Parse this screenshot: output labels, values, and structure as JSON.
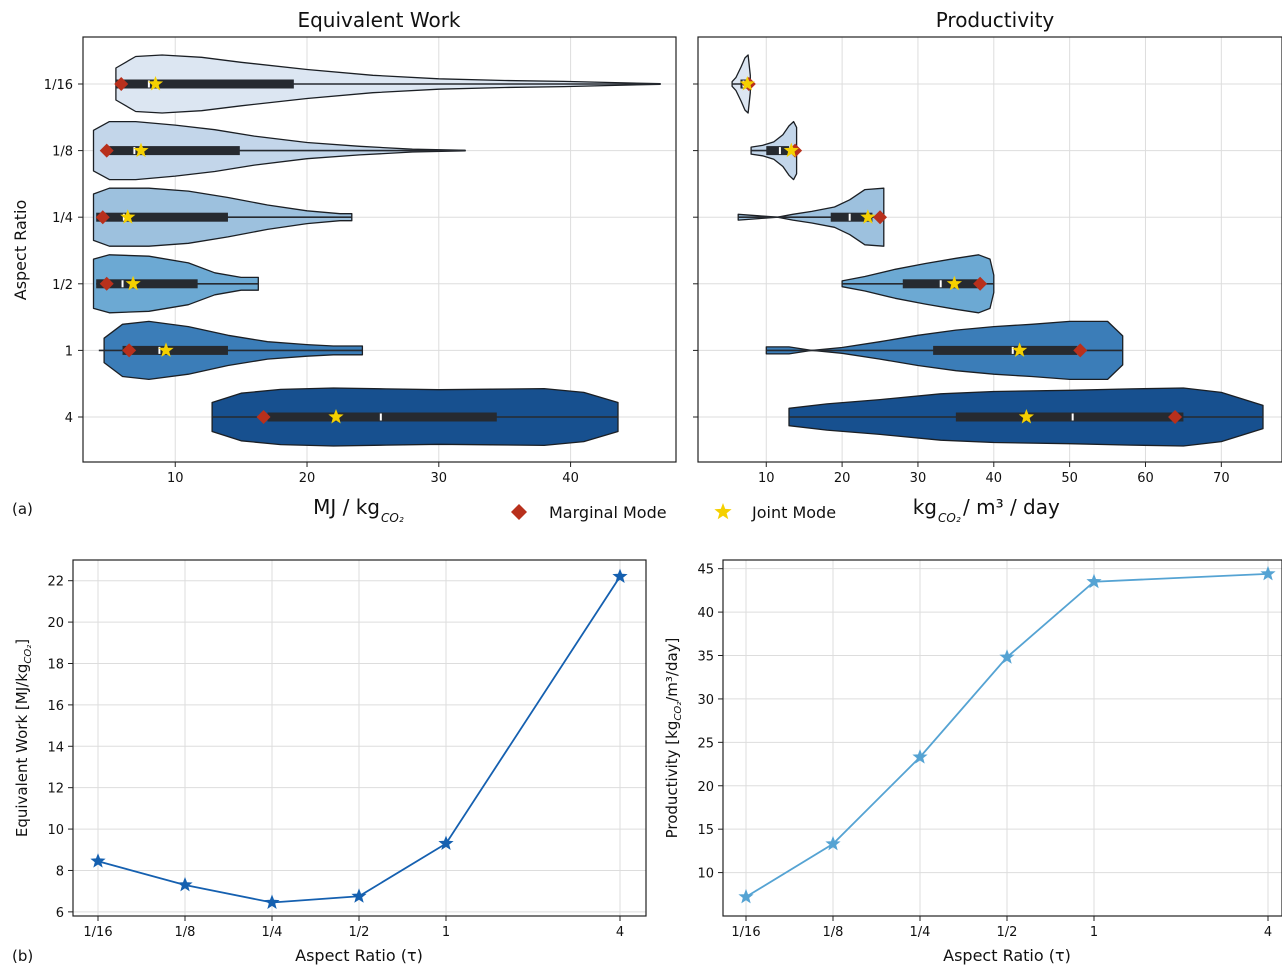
{
  "panel_labels": {
    "a": "(a)",
    "b": "(b)"
  },
  "legend": {
    "marginal": {
      "label": "Marginal Mode",
      "color": "#b8301c"
    },
    "joint": {
      "label": "Joint Mode",
      "color": "#f5d000"
    }
  },
  "colors": {
    "violins": [
      "#dce6f2",
      "#c3d6ea",
      "#9dc1de",
      "#6ca9d3",
      "#3b7db8",
      "#17508f"
    ],
    "box": "#262a30",
    "line_left": "#1560b0",
    "line_right": "#55a3d3",
    "grid": "#dddddd"
  },
  "chart_data": [
    {
      "type": "violin",
      "title": "Equivalent Work",
      "xlabel": "MJ / kg",
      "xlabel_sub": "CO₂",
      "ylabel": "Aspect Ratio",
      "categories": [
        "1/16",
        "1/8",
        "1/4",
        "1/2",
        "1",
        "4"
      ],
      "xlim": [
        3,
        48
      ],
      "xticks": [
        10,
        20,
        30,
        40
      ],
      "grid": true,
      "violins": [
        {
          "min": 5.5,
          "max": 46.8,
          "q1": 5.5,
          "median": 8.0,
          "q3": 19.0,
          "marginal_mode": 5.9,
          "joint_mode": 8.5,
          "profile": [
            [
              5.5,
              0.55
            ],
            [
              7,
              0.95
            ],
            [
              9,
              1.0
            ],
            [
              12,
              0.92
            ],
            [
              15,
              0.75
            ],
            [
              20,
              0.5
            ],
            [
              25,
              0.3
            ],
            [
              30,
              0.18
            ],
            [
              35,
              0.12
            ],
            [
              39.5,
              0.09
            ],
            [
              43,
              0.05
            ],
            [
              46.8,
              0.01
            ]
          ]
        },
        {
          "min": 5.0,
          "max": 32.0,
          "q1": 5.0,
          "median": 6.9,
          "q3": 14.9,
          "marginal_mode": 4.8,
          "joint_mode": 7.4,
          "profile": [
            [
              3.8,
              0.7
            ],
            [
              5,
              1.0
            ],
            [
              7,
              1.0
            ],
            [
              10,
              0.88
            ],
            [
              13,
              0.72
            ],
            [
              16,
              0.5
            ],
            [
              20,
              0.28
            ],
            [
              24,
              0.15
            ],
            [
              28,
              0.05
            ],
            [
              32,
              0.01
            ]
          ]
        },
        {
          "min": 4.0,
          "max": 23.4,
          "q1": 4.0,
          "median": 6.1,
          "q3": 14.0,
          "marginal_mode": 4.5,
          "joint_mode": 6.4,
          "profile": [
            [
              3.8,
              0.8
            ],
            [
              5,
              1.0
            ],
            [
              8,
              1.0
            ],
            [
              11,
              0.9
            ],
            [
              14,
              0.68
            ],
            [
              17,
              0.42
            ],
            [
              20,
              0.22
            ],
            [
              22.5,
              0.12
            ],
            [
              23.4,
              0.12
            ]
          ]
        },
        {
          "min": 4.0,
          "max": 16.3,
          "q1": 4.0,
          "median": 6.0,
          "q3": 11.7,
          "marginal_mode": 4.8,
          "joint_mode": 6.8,
          "profile": [
            [
              3.8,
              0.85
            ],
            [
              5,
              1.0
            ],
            [
              8,
              0.95
            ],
            [
              11,
              0.72
            ],
            [
              13,
              0.38
            ],
            [
              15,
              0.22
            ],
            [
              16.3,
              0.22
            ]
          ]
        },
        {
          "min": 4.2,
          "max": 24.2,
          "q1": 6.0,
          "median": 8.8,
          "q3": 14.0,
          "marginal_mode": 6.5,
          "joint_mode": 9.3,
          "profile": [
            [
              4.6,
              0.42
            ],
            [
              6,
              0.9
            ],
            [
              8,
              1.0
            ],
            [
              11,
              0.82
            ],
            [
              14,
              0.52
            ],
            [
              17,
              0.3
            ],
            [
              20,
              0.2
            ],
            [
              22,
              0.15
            ],
            [
              24.2,
              0.15
            ]
          ]
        },
        {
          "min": 12.8,
          "max": 43.6,
          "q1": 17.0,
          "median": 25.6,
          "q3": 34.4,
          "marginal_mode": 16.7,
          "joint_mode": 22.2,
          "profile": [
            [
              12.8,
              0.5
            ],
            [
              15,
              0.82
            ],
            [
              18,
              0.95
            ],
            [
              22,
              1.0
            ],
            [
              26,
              0.97
            ],
            [
              30,
              0.94
            ],
            [
              34,
              0.96
            ],
            [
              38,
              0.98
            ],
            [
              41,
              0.85
            ],
            [
              43.6,
              0.5
            ]
          ]
        }
      ]
    },
    {
      "type": "violin",
      "title": "Productivity",
      "xlabel": "kg",
      "xlabel_sub": "CO₂",
      "xlabel_units": " / m³ / day",
      "categories": [
        "1/16",
        "1/8",
        "1/4",
        "1/2",
        "1",
        "4"
      ],
      "xlim": [
        1,
        78
      ],
      "xticks": [
        10,
        20,
        30,
        40,
        50,
        60,
        70
      ],
      "grid": true,
      "violins": [
        {
          "min": 5.5,
          "max": 7.9,
          "q1": 6.6,
          "median": 7.0,
          "q3": 7.6,
          "marginal_mode": 7.7,
          "joint_mode": 7.5,
          "profile": [
            [
              5.5,
              0.08
            ],
            [
              6,
              0.22
            ],
            [
              6.7,
              0.6
            ],
            [
              7.2,
              0.9
            ],
            [
              7.6,
              1.0
            ],
            [
              7.9,
              0.3
            ]
          ]
        },
        {
          "min": 8.0,
          "max": 14.0,
          "q1": 10.0,
          "median": 11.8,
          "q3": 13.0,
          "marginal_mode": 13.8,
          "joint_mode": 13.3,
          "profile": [
            [
              8,
              0.12
            ],
            [
              9.5,
              0.18
            ],
            [
              11,
              0.3
            ],
            [
              12.2,
              0.55
            ],
            [
              13,
              0.85
            ],
            [
              13.6,
              1.0
            ],
            [
              14,
              0.8
            ]
          ]
        },
        {
          "min": 6.3,
          "max": 25.5,
          "q1": 18.5,
          "median": 21.0,
          "q3": 24.0,
          "marginal_mode": 25.0,
          "joint_mode": 23.4,
          "profile": [
            [
              6.3,
              0.1
            ],
            [
              9,
              0.05
            ],
            [
              11.5,
              0.0
            ],
            [
              13.5,
              0.1
            ],
            [
              16,
              0.2
            ],
            [
              19,
              0.35
            ],
            [
              21,
              0.6
            ],
            [
              23,
              0.95
            ],
            [
              25.5,
              1.0
            ]
          ]
        },
        {
          "min": 20.0,
          "max": 40.0,
          "q1": 28.0,
          "median": 33.0,
          "q3": 38.0,
          "marginal_mode": 38.2,
          "joint_mode": 34.8,
          "profile": [
            [
              20,
              0.1
            ],
            [
              23,
              0.25
            ],
            [
              27,
              0.5
            ],
            [
              31,
              0.7
            ],
            [
              35,
              0.88
            ],
            [
              38,
              1.0
            ],
            [
              39.5,
              0.85
            ],
            [
              40,
              0.3
            ]
          ]
        },
        {
          "min": 10.0,
          "max": 57.0,
          "q1": 32.0,
          "median": 42.5,
          "q3": 51.0,
          "marginal_mode": 51.4,
          "joint_mode": 43.4,
          "profile": [
            [
              10,
              0.12
            ],
            [
              13,
              0.12
            ],
            [
              16,
              0.0
            ],
            [
              20,
              0.1
            ],
            [
              25,
              0.3
            ],
            [
              30,
              0.52
            ],
            [
              35,
              0.7
            ],
            [
              40,
              0.82
            ],
            [
              45,
              0.9
            ],
            [
              50,
              1.0
            ],
            [
              55,
              1.0
            ],
            [
              57,
              0.5
            ]
          ]
        },
        {
          "min": 13.0,
          "max": 75.5,
          "q1": 35.0,
          "median": 50.4,
          "q3": 65.0,
          "marginal_mode": 63.9,
          "joint_mode": 44.3,
          "profile": [
            [
              13,
              0.3
            ],
            [
              18,
              0.45
            ],
            [
              25,
              0.6
            ],
            [
              33,
              0.8
            ],
            [
              40,
              0.88
            ],
            [
              50,
              0.92
            ],
            [
              58,
              0.97
            ],
            [
              65,
              1.0
            ],
            [
              70,
              0.85
            ],
            [
              75.5,
              0.4
            ]
          ]
        }
      ]
    },
    {
      "type": "line",
      "xlabel": "Aspect Ratio (τ)",
      "ylabel": "Equivalent Work [MJ/kg",
      "ylabel_sub": "CO₂",
      "ylabel_end": "]",
      "x": [
        0.0625,
        0.125,
        0.25,
        0.5,
        1,
        4
      ],
      "xtick_labels": [
        "1/16",
        "1/8",
        "1/4",
        "1/2",
        "1",
        "4"
      ],
      "y": [
        8.45,
        7.3,
        6.45,
        6.75,
        9.3,
        22.2
      ],
      "ylim": [
        5.8,
        23.0
      ],
      "yticks": [
        6,
        8,
        10,
        12,
        14,
        16,
        18,
        20,
        22
      ],
      "x_scale": "log",
      "marker": "star",
      "grid": true
    },
    {
      "type": "line",
      "xlabel": "Aspect Ratio (τ)",
      "ylabel": "Productivity [kg",
      "ylabel_sub": "CO₂",
      "ylabel_end": "/m³/day]",
      "x": [
        0.0625,
        0.125,
        0.25,
        0.5,
        1,
        4
      ],
      "xtick_labels": [
        "1/16",
        "1/8",
        "1/4",
        "1/2",
        "1",
        "4"
      ],
      "y": [
        7.2,
        13.3,
        23.3,
        34.8,
        43.5,
        44.4
      ],
      "ylim": [
        5.0,
        46.0
      ],
      "yticks": [
        10,
        15,
        20,
        25,
        30,
        35,
        40,
        45
      ],
      "x_scale": "log",
      "marker": "star",
      "grid": true
    }
  ]
}
